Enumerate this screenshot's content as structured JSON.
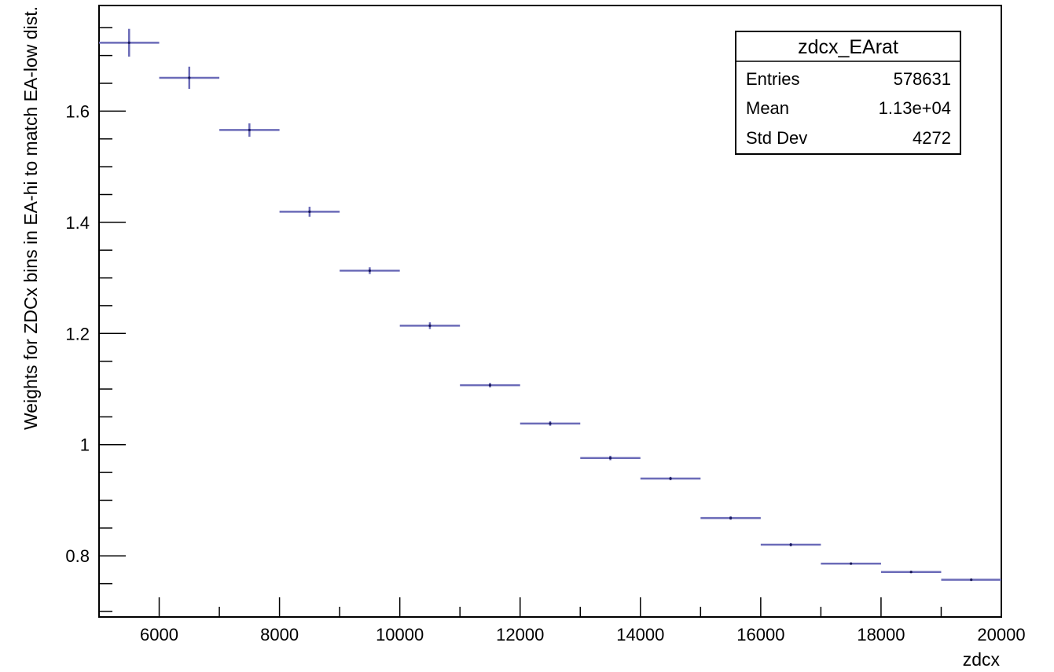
{
  "chart_data": {
    "type": "scatter",
    "title": "",
    "xlabel": "zdcx",
    "ylabel": "Weights for ZDCx bins in EA-hi to match EA-low dist.",
    "xlim": [
      5000,
      20000
    ],
    "ylim": [
      0.69,
      1.79
    ],
    "x_major_ticks": [
      6000,
      8000,
      10000,
      12000,
      14000,
      16000,
      18000,
      20000
    ],
    "x_tick_labels": [
      "6000",
      "8000",
      "10000",
      "12000",
      "14000",
      "16000",
      "18000",
      "20000"
    ],
    "y_major_ticks": [
      0.8,
      1.0,
      1.2,
      1.4,
      1.6
    ],
    "y_tick_labels": [
      "0.8",
      "1",
      "1.2",
      "1.4",
      "1.6"
    ],
    "grid": false,
    "marker_color": "#6b6bb8",
    "series": [
      {
        "x": [
          5500,
          6500,
          7500,
          8500,
          9500,
          10500,
          11500,
          12500,
          13500,
          14500,
          15500,
          16500,
          17500,
          18500,
          19500
        ],
        "x_err": [
          500,
          500,
          500,
          500,
          500,
          500,
          500,
          500,
          500,
          500,
          500,
          500,
          500,
          500,
          500
        ],
        "y": [
          1.723,
          1.66,
          1.566,
          1.419,
          1.313,
          1.214,
          1.107,
          1.038,
          0.976,
          0.939,
          0.868,
          0.82,
          0.786,
          0.771,
          0.757
        ],
        "y_err": [
          0.025,
          0.02,
          0.012,
          0.009,
          0.006,
          0.006,
          0.004,
          0.004,
          0.004,
          0.003,
          0.003,
          0.003,
          0.002,
          0.002,
          0.002
        ]
      }
    ],
    "stats_box": {
      "title": "zdcx_EArat",
      "rows": [
        {
          "label": "Entries",
          "value": "578631"
        },
        {
          "label": "Mean",
          "value": "1.13e+04"
        },
        {
          "label": "Std Dev",
          "value": "4272"
        }
      ],
      "position": "top-right"
    }
  }
}
